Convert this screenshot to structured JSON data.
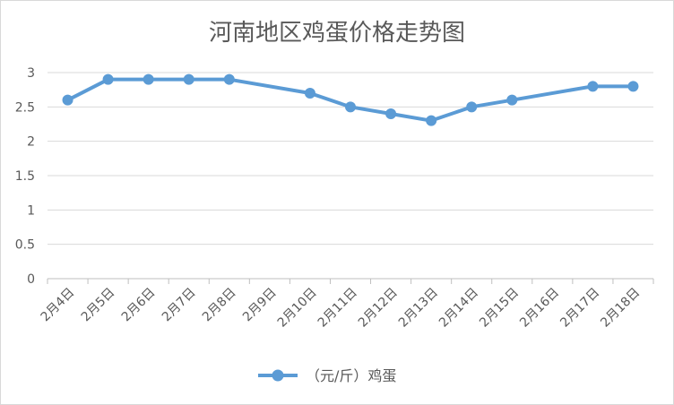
{
  "chart_data": {
    "type": "line",
    "title": "河南地区鸡蛋价格走势图",
    "categories": [
      "2月4日",
      "2月5日",
      "2月6日",
      "2月7日",
      "2月8日",
      "2月9日",
      "2月10日",
      "2月11日",
      "2月12日",
      "2月13日",
      "2月14日",
      "2月15日",
      "2月16日",
      "2月17日",
      "2月18日"
    ],
    "series": [
      {
        "name": "（元/斤）鸡蛋",
        "values": [
          2.6,
          2.9,
          2.9,
          2.9,
          2.9,
          null,
          2.7,
          2.5,
          2.4,
          2.3,
          2.5,
          2.6,
          null,
          2.8,
          2.8
        ],
        "color": "#5b9bd5"
      }
    ],
    "ylim": [
      0,
      3
    ],
    "yticks": [
      "0",
      "0.5",
      "1",
      "1.5",
      "2",
      "2.5",
      "3"
    ],
    "grid": true,
    "legend": "bottom"
  }
}
